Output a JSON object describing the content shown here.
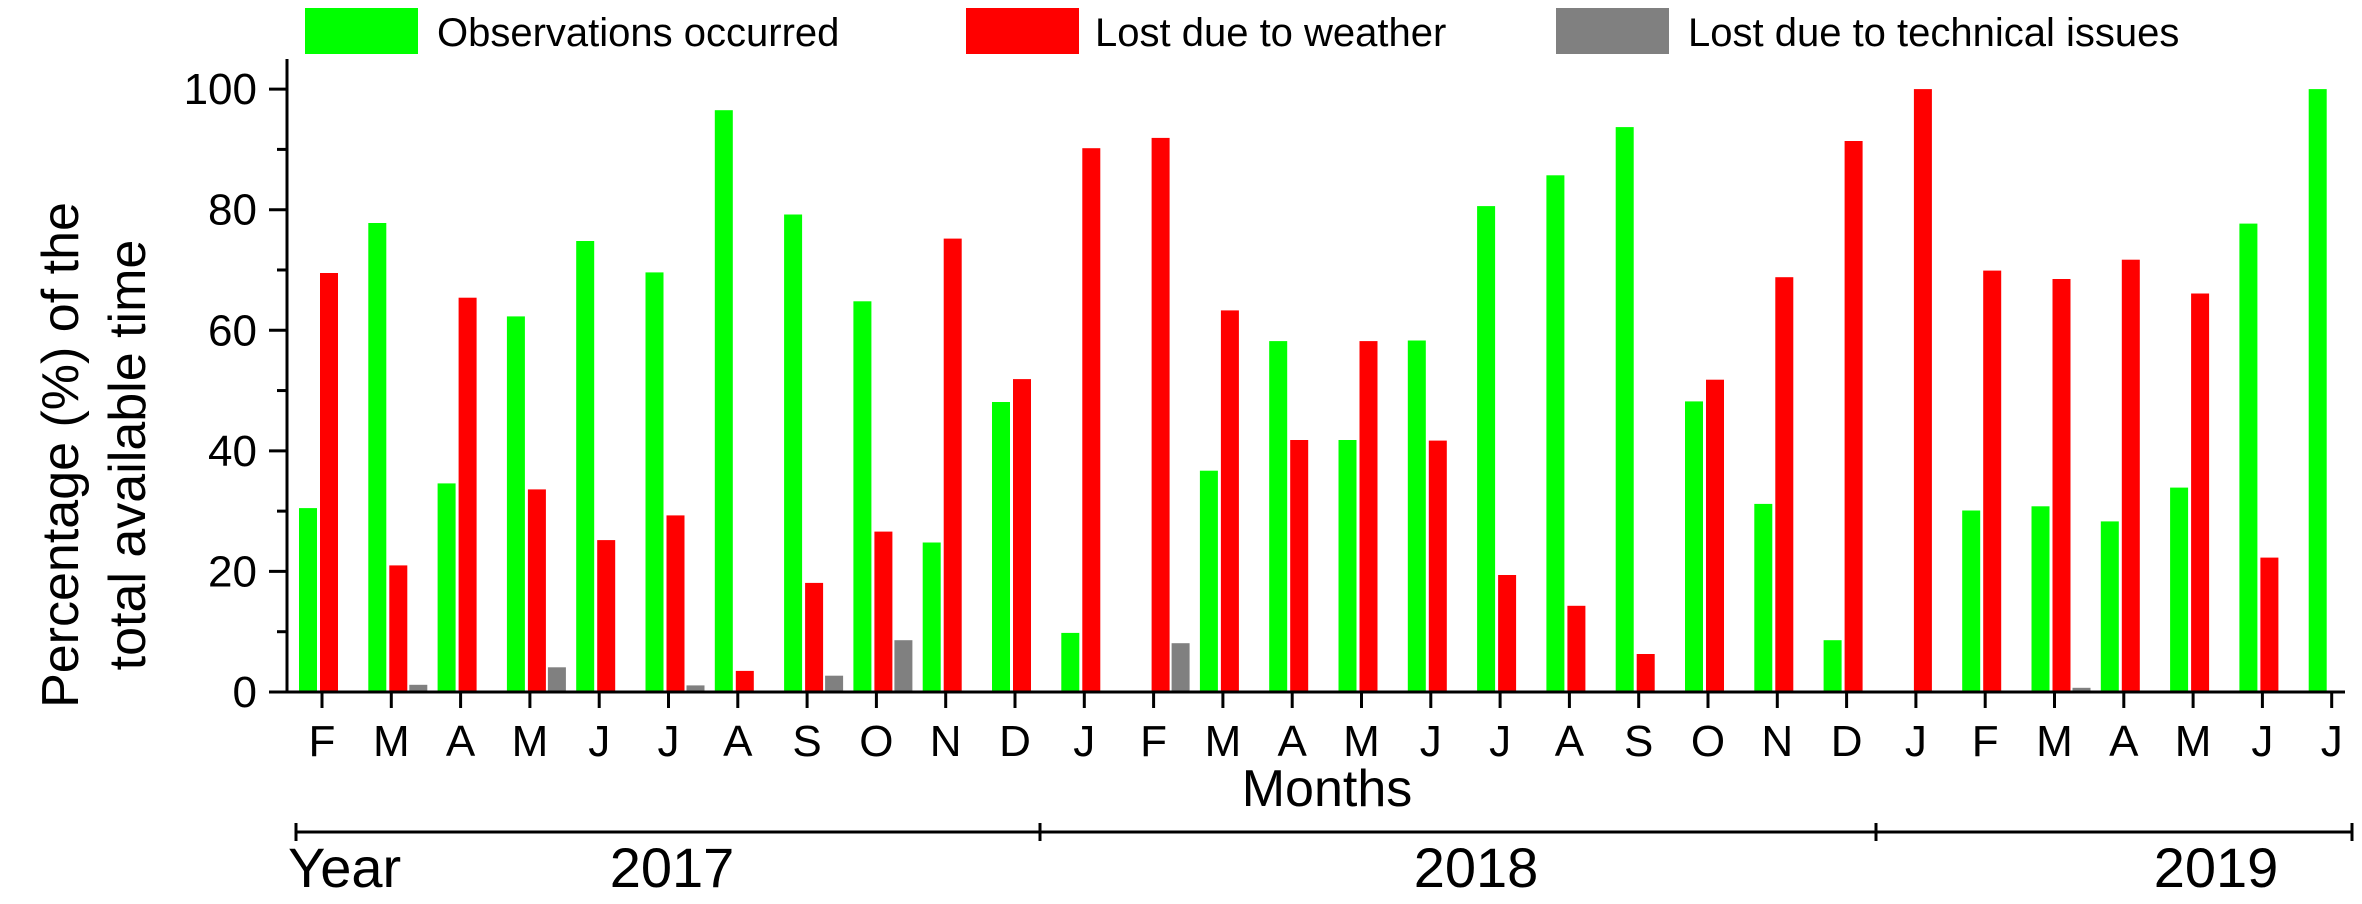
{
  "chart_data": {
    "type": "bar",
    "xlabel": "Months",
    "ylabel_line1": "Percentage (%) of the",
    "ylabel_line2": "total available time",
    "ylim": [
      0,
      104
    ],
    "yticks": [
      0,
      20,
      40,
      60,
      80,
      100
    ],
    "categories": [
      "F",
      "M",
      "A",
      "M",
      "J",
      "J",
      "A",
      "S",
      "O",
      "N",
      "D",
      "J",
      "F",
      "M",
      "A",
      "M",
      "J",
      "J",
      "A",
      "S",
      "O",
      "N",
      "D",
      "J",
      "F",
      "M",
      "A",
      "M",
      "J",
      "J"
    ],
    "series": [
      {
        "name": "Observations occurred",
        "color": "#00ff00",
        "values": [
          30.5,
          77.8,
          34.6,
          62.3,
          74.8,
          69.6,
          96.5,
          79.2,
          64.8,
          24.8,
          48.1,
          9.8,
          0,
          36.7,
          58.2,
          41.8,
          58.3,
          80.6,
          85.7,
          93.7,
          48.2,
          31.2,
          8.6,
          0,
          30.1,
          30.8,
          28.3,
          33.9,
          77.7,
          100
        ]
      },
      {
        "name": "Lost due to weather",
        "color": "#ff0000",
        "values": [
          69.5,
          21.0,
          65.4,
          33.6,
          25.2,
          29.3,
          3.5,
          18.1,
          26.6,
          75.2,
          51.9,
          90.2,
          91.9,
          63.3,
          41.8,
          58.2,
          41.7,
          19.4,
          14.3,
          6.3,
          51.8,
          68.8,
          91.4,
          100,
          69.9,
          68.5,
          71.7,
          66.1,
          22.3,
          0
        ]
      },
      {
        "name": "Lost due to technical issues",
        "color": "#808080",
        "values": [
          0,
          1.2,
          0,
          4.1,
          0,
          1.1,
          0,
          2.7,
          8.6,
          0,
          0,
          0,
          8.1,
          0,
          0,
          0,
          0,
          0,
          0,
          0,
          0,
          0,
          0,
          0,
          0,
          0.7,
          0,
          0,
          0,
          0
        ]
      }
    ],
    "legend_position": "top",
    "year_axis_label": "Year",
    "years": [
      {
        "label": "2017",
        "first_month_index": 0,
        "last_month_index": 10
      },
      {
        "label": "2018",
        "first_month_index": 11,
        "last_month_index": 22
      },
      {
        "label": "2019",
        "first_month_index": 23,
        "last_month_index": 29
      }
    ],
    "grid": false
  }
}
